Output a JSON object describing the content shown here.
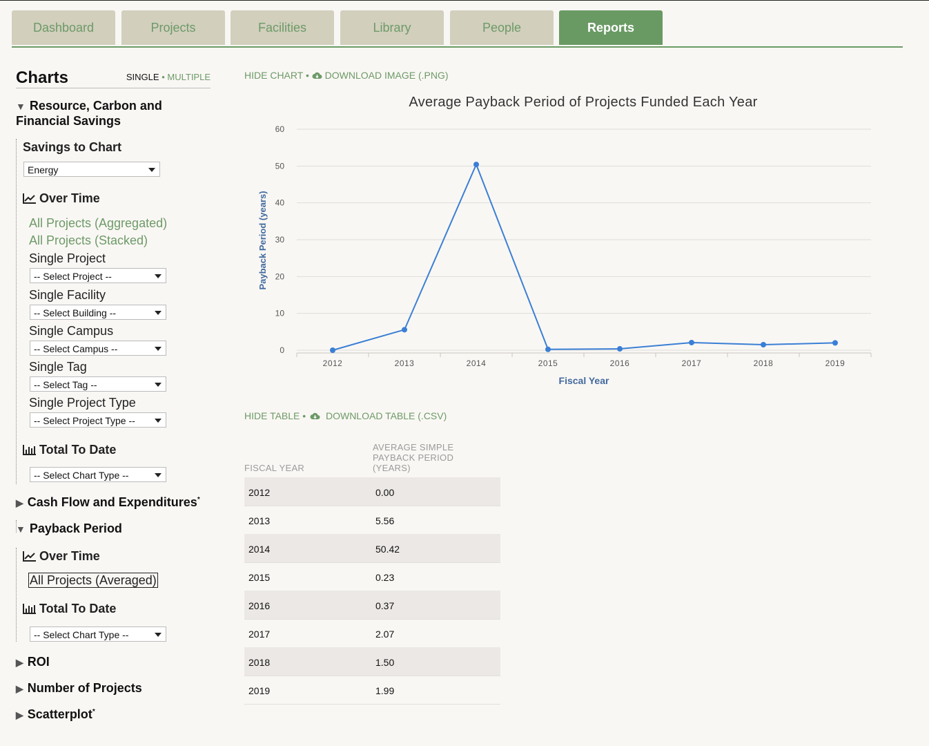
{
  "tabs": [
    "Dashboard",
    "Projects",
    "Facilities",
    "Library",
    "People",
    "Reports"
  ],
  "active_tab": "Reports",
  "sidebar": {
    "title": "Charts",
    "mode_single": "SINGLE",
    "mode_sep": "•",
    "mode_multiple": "MULTIPLE",
    "sections": {
      "resource": "Resource, Carbon and Financial Savings",
      "cashflow": "Cash Flow and Expenditures",
      "payback": "Payback Period",
      "roi": "ROI",
      "num_projects": "Number of Projects",
      "scatter": "Scatterplot"
    },
    "asterisk": "*",
    "savings_to_chart": "Savings to Chart",
    "savings_value": "Energy",
    "over_time": "Over Time",
    "total_to_date": "Total To Date",
    "all_aggregated": "All Projects (Aggregated)",
    "all_stacked": "All Projects (Stacked)",
    "all_averaged": "All Projects (Averaged)",
    "single_project": "Single Project",
    "select_project": "-- Select Project --",
    "single_facility": "Single Facility",
    "select_building": "-- Select Building --",
    "single_campus": "Single Campus",
    "select_campus": "-- Select Campus --",
    "single_tag": "Single Tag",
    "select_tag": "-- Select Tag --",
    "single_project_type": "Single Project Type",
    "select_project_type": "-- Select Project Type --",
    "select_chart_type": "-- Select Chart Type --"
  },
  "chart_actions": {
    "hide": "HIDE CHART",
    "sep": "•",
    "download": "DOWNLOAD IMAGE (.PNG)"
  },
  "table_actions": {
    "hide": "HIDE TABLE",
    "sep": "•",
    "download": "DOWNLOAD TABLE (.CSV)"
  },
  "colors": {
    "accent": "#6a9a64",
    "line": "#3a7fd5",
    "axis_title": "#41699e"
  },
  "chart_data": {
    "type": "line",
    "title": "Average Payback Period of Projects Funded Each Year",
    "xlabel": "Fiscal Year",
    "ylabel": "Payback Period (years)",
    "x": [
      "2012",
      "2013",
      "2014",
      "2015",
      "2016",
      "2017",
      "2018",
      "2019"
    ],
    "series": [
      {
        "values": [
          0.0,
          5.56,
          50.42,
          0.23,
          0.37,
          2.07,
          1.5,
          1.99
        ]
      }
    ],
    "ylim": [
      0,
      60
    ],
    "yticks": [
      0,
      10,
      20,
      30,
      40,
      50,
      60
    ],
    "grid": true
  },
  "table": {
    "col1": "FISCAL YEAR",
    "col2_lines": [
      "AVERAGE SIMPLE",
      "PAYBACK PERIOD",
      "(YEARS)"
    ],
    "rows": [
      [
        "2012",
        "0.00"
      ],
      [
        "2013",
        "5.56"
      ],
      [
        "2014",
        "50.42"
      ],
      [
        "2015",
        "0.23"
      ],
      [
        "2016",
        "0.37"
      ],
      [
        "2017",
        "2.07"
      ],
      [
        "2018",
        "1.50"
      ],
      [
        "2019",
        "1.99"
      ]
    ]
  }
}
